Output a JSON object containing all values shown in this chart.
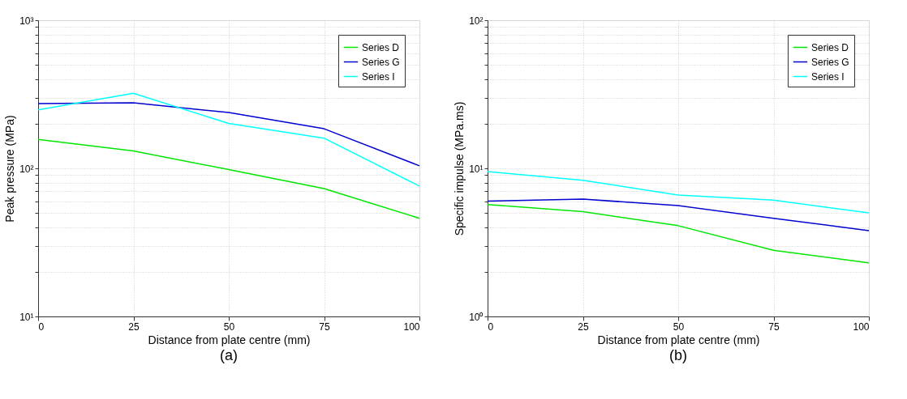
{
  "chart_data": [
    {
      "type": "line",
      "title": "(a)",
      "xlabel": "Distance from plate centre (mm)",
      "ylabel": "Peak pressure (MPa)",
      "x": [
        0,
        25,
        50,
        75,
        100
      ],
      "series": [
        {
          "name": "Series D",
          "color": "#00e600",
          "values": [
            157,
            131,
            98,
            73,
            46
          ]
        },
        {
          "name": "Series G",
          "color": "#0000d0",
          "values": [
            274,
            277,
            238,
            185,
            104
          ]
        },
        {
          "name": "Series I",
          "color": "#00ffff",
          "values": [
            248,
            321,
            201,
            160,
            76
          ]
        }
      ],
      "xlim": [
        0,
        100
      ],
      "xticks": [
        0,
        25,
        50,
        75,
        100
      ],
      "ylim": [
        10,
        1000
      ],
      "yticks": [
        {
          "value": 10,
          "label": "10¹"
        },
        {
          "value": 100,
          "label": "10²"
        },
        {
          "value": 1000,
          "label": "10³"
        }
      ],
      "log": "y",
      "grid": true,
      "legend": "top right",
      "line_style": "solid",
      "marker": "none"
    },
    {
      "type": "line",
      "title": "(b)",
      "xlabel": "Distance from plate centre (mm)",
      "ylabel": "Specific impulse (MPa.ms)",
      "x": [
        0,
        25,
        50,
        75,
        100
      ],
      "series": [
        {
          "name": "Series D",
          "color": "#00e600",
          "values": [
            5.7,
            5.1,
            4.1,
            2.8,
            2.3
          ]
        },
        {
          "name": "Series G",
          "color": "#0000d0",
          "values": [
            6.0,
            6.2,
            5.6,
            4.6,
            3.8
          ]
        },
        {
          "name": "Series I",
          "color": "#00ffff",
          "values": [
            9.5,
            8.3,
            6.6,
            6.1,
            5.0
          ]
        }
      ],
      "xlim": [
        0,
        100
      ],
      "xticks": [
        0,
        25,
        50,
        75,
        100
      ],
      "ylim": [
        1,
        100
      ],
      "yticks": [
        {
          "value": 1,
          "label": "10⁰"
        },
        {
          "value": 10,
          "label": "10¹"
        },
        {
          "value": 100,
          "label": "10²"
        }
      ],
      "log": "y",
      "grid": true,
      "legend": "top right",
      "line_style": "solid",
      "marker": "none"
    }
  ]
}
